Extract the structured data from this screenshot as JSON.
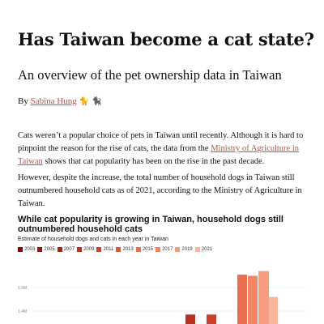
{
  "article": {
    "title": "Has Taiwan become a cat state?",
    "subtitle": "An overview of the pet ownership data in Taiwan",
    "byline_prefix": "By",
    "author": "Sabina Hung",
    "author_emoji": "🐈 🐈‍⬛",
    "para1_before": "Cats weren’t a popular choice of pets in Taiwan until recently. Although it is hard to pinpoint the reason for the rise of cats, the data from the ",
    "para1_link": "Ministry of Agriculture in Taiwan",
    "para1_after": " shows that cat popularity has been on the rise in the past decade.",
    "para2": "However, despite the increase, the total number of household dogs in Taiwan still outnumbered household cats as of 2021, according to the Ministry of Agriculture in Taiwan."
  },
  "chart_data": {
    "type": "bar",
    "title": "While cat popularity is growing in Taiwan, household dogs still outnumbered household cats",
    "subtitle": "Estimate of household dogs and cats in each year in Taiwan",
    "legend": [
      "2003",
      "2005",
      "2007",
      "2009",
      "2011",
      "2013",
      "2015",
      "2017",
      "2019",
      "2021"
    ],
    "colors": [
      "#7a0d0d",
      "#8e1a14",
      "#a3261c",
      "#b83325",
      "#c8432f",
      "#d85a40",
      "#e86f52",
      "#f28566",
      "#f89c80",
      "#fbb59c"
    ],
    "y_ticks": [
      "1.6M",
      "1.4M"
    ],
    "bars_visible": [
      {
        "year": "2009",
        "value": 1.37
      },
      {
        "year": "2011",
        "value": 1.37
      },
      {
        "year": "2015",
        "value": 1.71
      },
      {
        "year": "2017",
        "value": 1.7
      },
      {
        "year": "2019",
        "value": 1.74
      },
      {
        "year": "2021",
        "value": 1.52
      }
    ],
    "ylim": [
      1.3,
      1.8
    ]
  }
}
